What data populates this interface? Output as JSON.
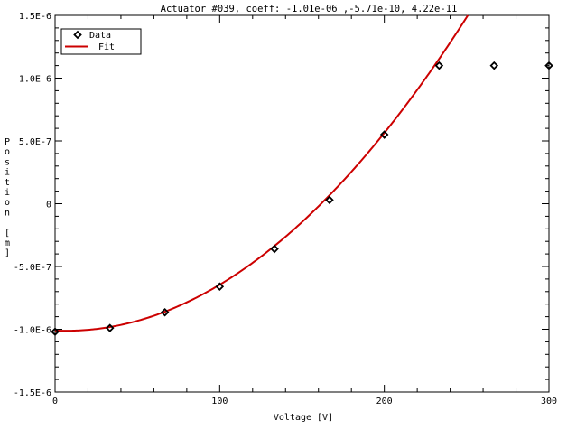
{
  "chart_data": {
    "type": "scatter",
    "title": "Actuator #039, coeff: -1.01e-06 ,-5.71e-10,  4.22e-11",
    "xlabel": "Voltage [V]",
    "ylabel": "Position [m]",
    "xlim": [
      0,
      300
    ],
    "ylim": [
      -1.5e-06,
      1.5e-06
    ],
    "x_ticks": [
      0,
      100,
      200,
      300
    ],
    "x_tick_labels": [
      "0",
      "100",
      "200",
      "300"
    ],
    "y_ticks": [
      -1.5e-06,
      -1e-06,
      -5e-07,
      0,
      5e-07,
      1e-06,
      1.5e-06
    ],
    "y_tick_labels": [
      "-1.5E-6",
      "-1.0E-6",
      "-5.0E-7",
      "0",
      "5.0E-7",
      "1.0E-6",
      "1.5E-6"
    ],
    "grid": false,
    "legend_position": "top-left",
    "series": [
      {
        "name": "Data",
        "marker": "diamond",
        "color": "#000000",
        "x": [
          0,
          33.3,
          66.7,
          100,
          133.3,
          166.7,
          200,
          233.3,
          266.7,
          300
        ],
        "y": [
          -1.02e-06,
          -9.9e-07,
          -8.65e-07,
          -6.6e-07,
          -3.6e-07,
          3e-08,
          5.5e-07,
          1.1e-06,
          1.1e-06,
          1.1e-06
        ]
      },
      {
        "name": "Fit",
        "line": "solid",
        "color": "#cc0000",
        "coefficients": [
          -1.01e-06,
          -5.71e-10,
          4.22e-11
        ]
      }
    ]
  }
}
